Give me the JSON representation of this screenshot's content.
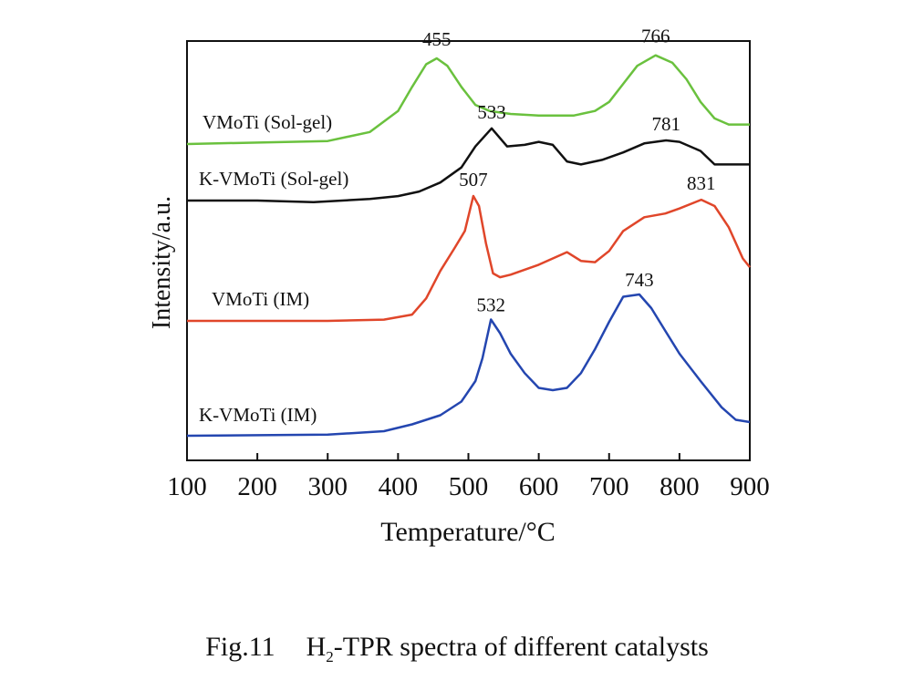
{
  "chart_data": {
    "type": "line",
    "xlabel": "Temperature/°C",
    "ylabel": "Intensity/a.u.",
    "xlim": [
      100,
      900
    ],
    "xticks": [
      100,
      200,
      300,
      400,
      500,
      600,
      700,
      800,
      900
    ],
    "yticks": false,
    "grid": false,
    "series": [
      {
        "name": "VMoTi (Sol-gel)",
        "color": "#6ac13e",
        "peaks": [
          455,
          766
        ],
        "x": [
          100,
          300,
          360,
          400,
          420,
          440,
          455,
          470,
          490,
          510,
          530,
          560,
          600,
          650,
          680,
          700,
          720,
          740,
          766,
          790,
          810,
          830,
          850,
          870,
          900
        ],
        "y": [
          0.0,
          0.02,
          0.08,
          0.22,
          0.38,
          0.53,
          0.57,
          0.52,
          0.38,
          0.26,
          0.22,
          0.2,
          0.19,
          0.19,
          0.22,
          0.28,
          0.4,
          0.52,
          0.59,
          0.54,
          0.43,
          0.28,
          0.17,
          0.13,
          0.13
        ]
      },
      {
        "name": "K-VMoTi (Sol-gel)",
        "color": "#111111",
        "peaks": [
          533,
          781
        ],
        "x": [
          100,
          200,
          280,
          360,
          400,
          430,
          460,
          490,
          510,
          533,
          555,
          580,
          600,
          620,
          640,
          660,
          690,
          720,
          750,
          781,
          800,
          830,
          850,
          870,
          900
        ],
        "y": [
          0.0,
          0.0,
          -0.01,
          0.01,
          0.03,
          0.06,
          0.12,
          0.22,
          0.36,
          0.48,
          0.36,
          0.37,
          0.39,
          0.37,
          0.26,
          0.24,
          0.27,
          0.32,
          0.38,
          0.4,
          0.39,
          0.33,
          0.24,
          0.24,
          0.24
        ]
      },
      {
        "name": "VMoTi (IM)",
        "color": "#e0462a",
        "peaks": [
          507,
          831
        ],
        "x": [
          100,
          200,
          300,
          380,
          420,
          440,
          460,
          480,
          495,
          507,
          515,
          525,
          535,
          545,
          560,
          600,
          640,
          660,
          680,
          700,
          720,
          750,
          780,
          800,
          831,
          850,
          870,
          890,
          900
        ],
        "y": [
          0.0,
          0.0,
          0.0,
          0.01,
          0.05,
          0.18,
          0.4,
          0.58,
          0.72,
          1.0,
          0.92,
          0.62,
          0.38,
          0.35,
          0.37,
          0.45,
          0.55,
          0.48,
          0.47,
          0.56,
          0.72,
          0.83,
          0.86,
          0.9,
          0.97,
          0.92,
          0.75,
          0.5,
          0.43
        ]
      },
      {
        "name": "K-VMoTi (IM)",
        "color": "#2446b0",
        "peaks": [
          532,
          743
        ],
        "x": [
          100,
          300,
          380,
          420,
          460,
          490,
          510,
          520,
          532,
          545,
          560,
          580,
          600,
          620,
          640,
          660,
          680,
          700,
          720,
          743,
          760,
          780,
          800,
          830,
          860,
          880,
          900
        ],
        "y": [
          0.0,
          0.01,
          0.04,
          0.1,
          0.18,
          0.3,
          0.48,
          0.68,
          1.02,
          0.9,
          0.72,
          0.55,
          0.42,
          0.4,
          0.42,
          0.55,
          0.76,
          1.0,
          1.22,
          1.24,
          1.12,
          0.92,
          0.72,
          0.48,
          0.25,
          0.14,
          0.12
        ]
      }
    ]
  },
  "caption": {
    "label": "Fig.11",
    "text_pre": "H",
    "text_sub": "2",
    "text_post": "-TPR spectra of different catalysts"
  }
}
